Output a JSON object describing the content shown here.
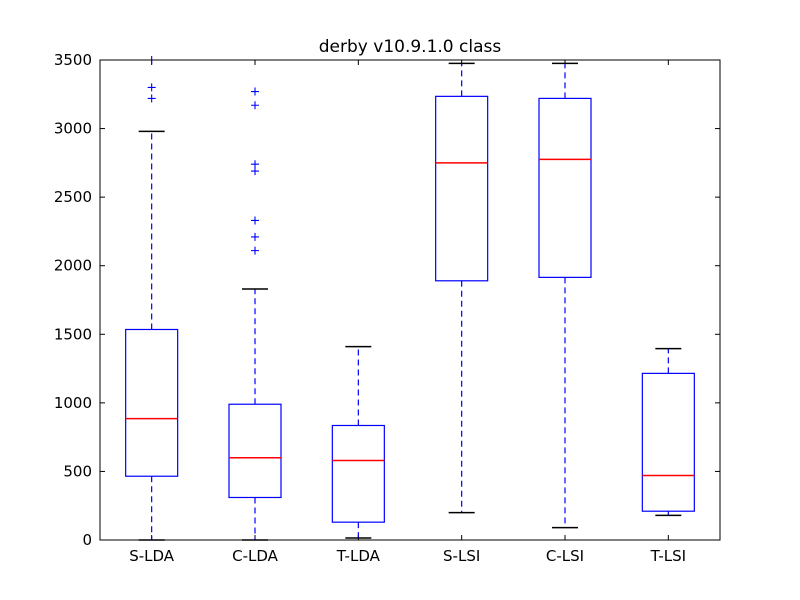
{
  "chart_data": {
    "type": "boxplot",
    "title": "derby v10.9.1.0 class",
    "xlabel": "",
    "ylabel": "",
    "ylim": [
      0,
      3500
    ],
    "yticks": [
      0,
      500,
      1000,
      1500,
      2000,
      2500,
      3000,
      3500
    ],
    "grid": false,
    "colors": {
      "box": "#0000ff",
      "median": "#ff0000",
      "cap": "#000000",
      "flier": "#0000ff",
      "axes": "#000000"
    },
    "categories": [
      "S-LDA",
      "C-LDA",
      "T-LDA",
      "S-LSI",
      "C-LSI",
      "T-LSI"
    ],
    "boxes": [
      {
        "whisker_low": 0,
        "q1": 465,
        "median": 885,
        "q3": 1535,
        "whisker_high": 2980,
        "fliers": [
          3220,
          3300,
          3500
        ]
      },
      {
        "whisker_low": 0,
        "q1": 310,
        "median": 600,
        "q3": 990,
        "whisker_high": 1830,
        "fliers": [
          2110,
          2210,
          2330,
          2690,
          2740,
          3170,
          3270
        ]
      },
      {
        "whisker_low": 15,
        "q1": 130,
        "median": 580,
        "q3": 835,
        "whisker_high": 1410,
        "fliers": []
      },
      {
        "whisker_low": 200,
        "q1": 1890,
        "median": 2750,
        "q3": 3235,
        "whisker_high": 3475,
        "fliers": []
      },
      {
        "whisker_low": 90,
        "q1": 1915,
        "median": 2775,
        "q3": 3220,
        "whisker_high": 3475,
        "fliers": []
      },
      {
        "whisker_low": 180,
        "q1": 210,
        "median": 470,
        "q3": 1215,
        "whisker_high": 1395,
        "fliers": []
      }
    ]
  }
}
